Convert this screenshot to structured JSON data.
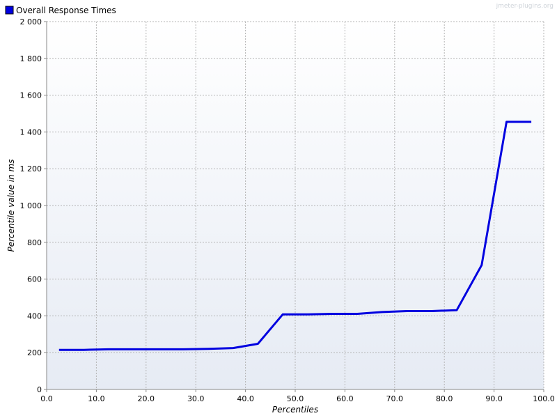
{
  "watermark": "jmeter-plugins.org",
  "chart_data": {
    "type": "line",
    "title": "",
    "xlabel": "Percentiles",
    "ylabel": "Percentile value in ms",
    "xlim": [
      0,
      100
    ],
    "ylim": [
      0,
      2000
    ],
    "x_ticks": [
      "0.0",
      "10.0",
      "20.0",
      "30.0",
      "40.0",
      "50.0",
      "60.0",
      "70.0",
      "80.0",
      "90.0",
      "100.0"
    ],
    "y_ticks": [
      "0",
      "200",
      "400",
      "600",
      "800",
      "1 000",
      "1 200",
      "1 400",
      "1 600",
      "1 800",
      "2 000"
    ],
    "grid": true,
    "legend_position": "top-left",
    "series": [
      {
        "name": "Overall Response Times",
        "color": "#0000e0",
        "x": [
          2.5,
          7.5,
          12.5,
          17.5,
          22.5,
          27.5,
          32.5,
          37.5,
          42.5,
          47.5,
          52.5,
          57.5,
          62.5,
          67.5,
          72.5,
          77.5,
          82.5,
          87.5,
          92.5,
          97.5
        ],
        "y": [
          215,
          215,
          218,
          218,
          218,
          218,
          221,
          225,
          248,
          408,
          408,
          411,
          411,
          421,
          426,
          426,
          431,
          676,
          1455,
          1455
        ]
      }
    ]
  }
}
